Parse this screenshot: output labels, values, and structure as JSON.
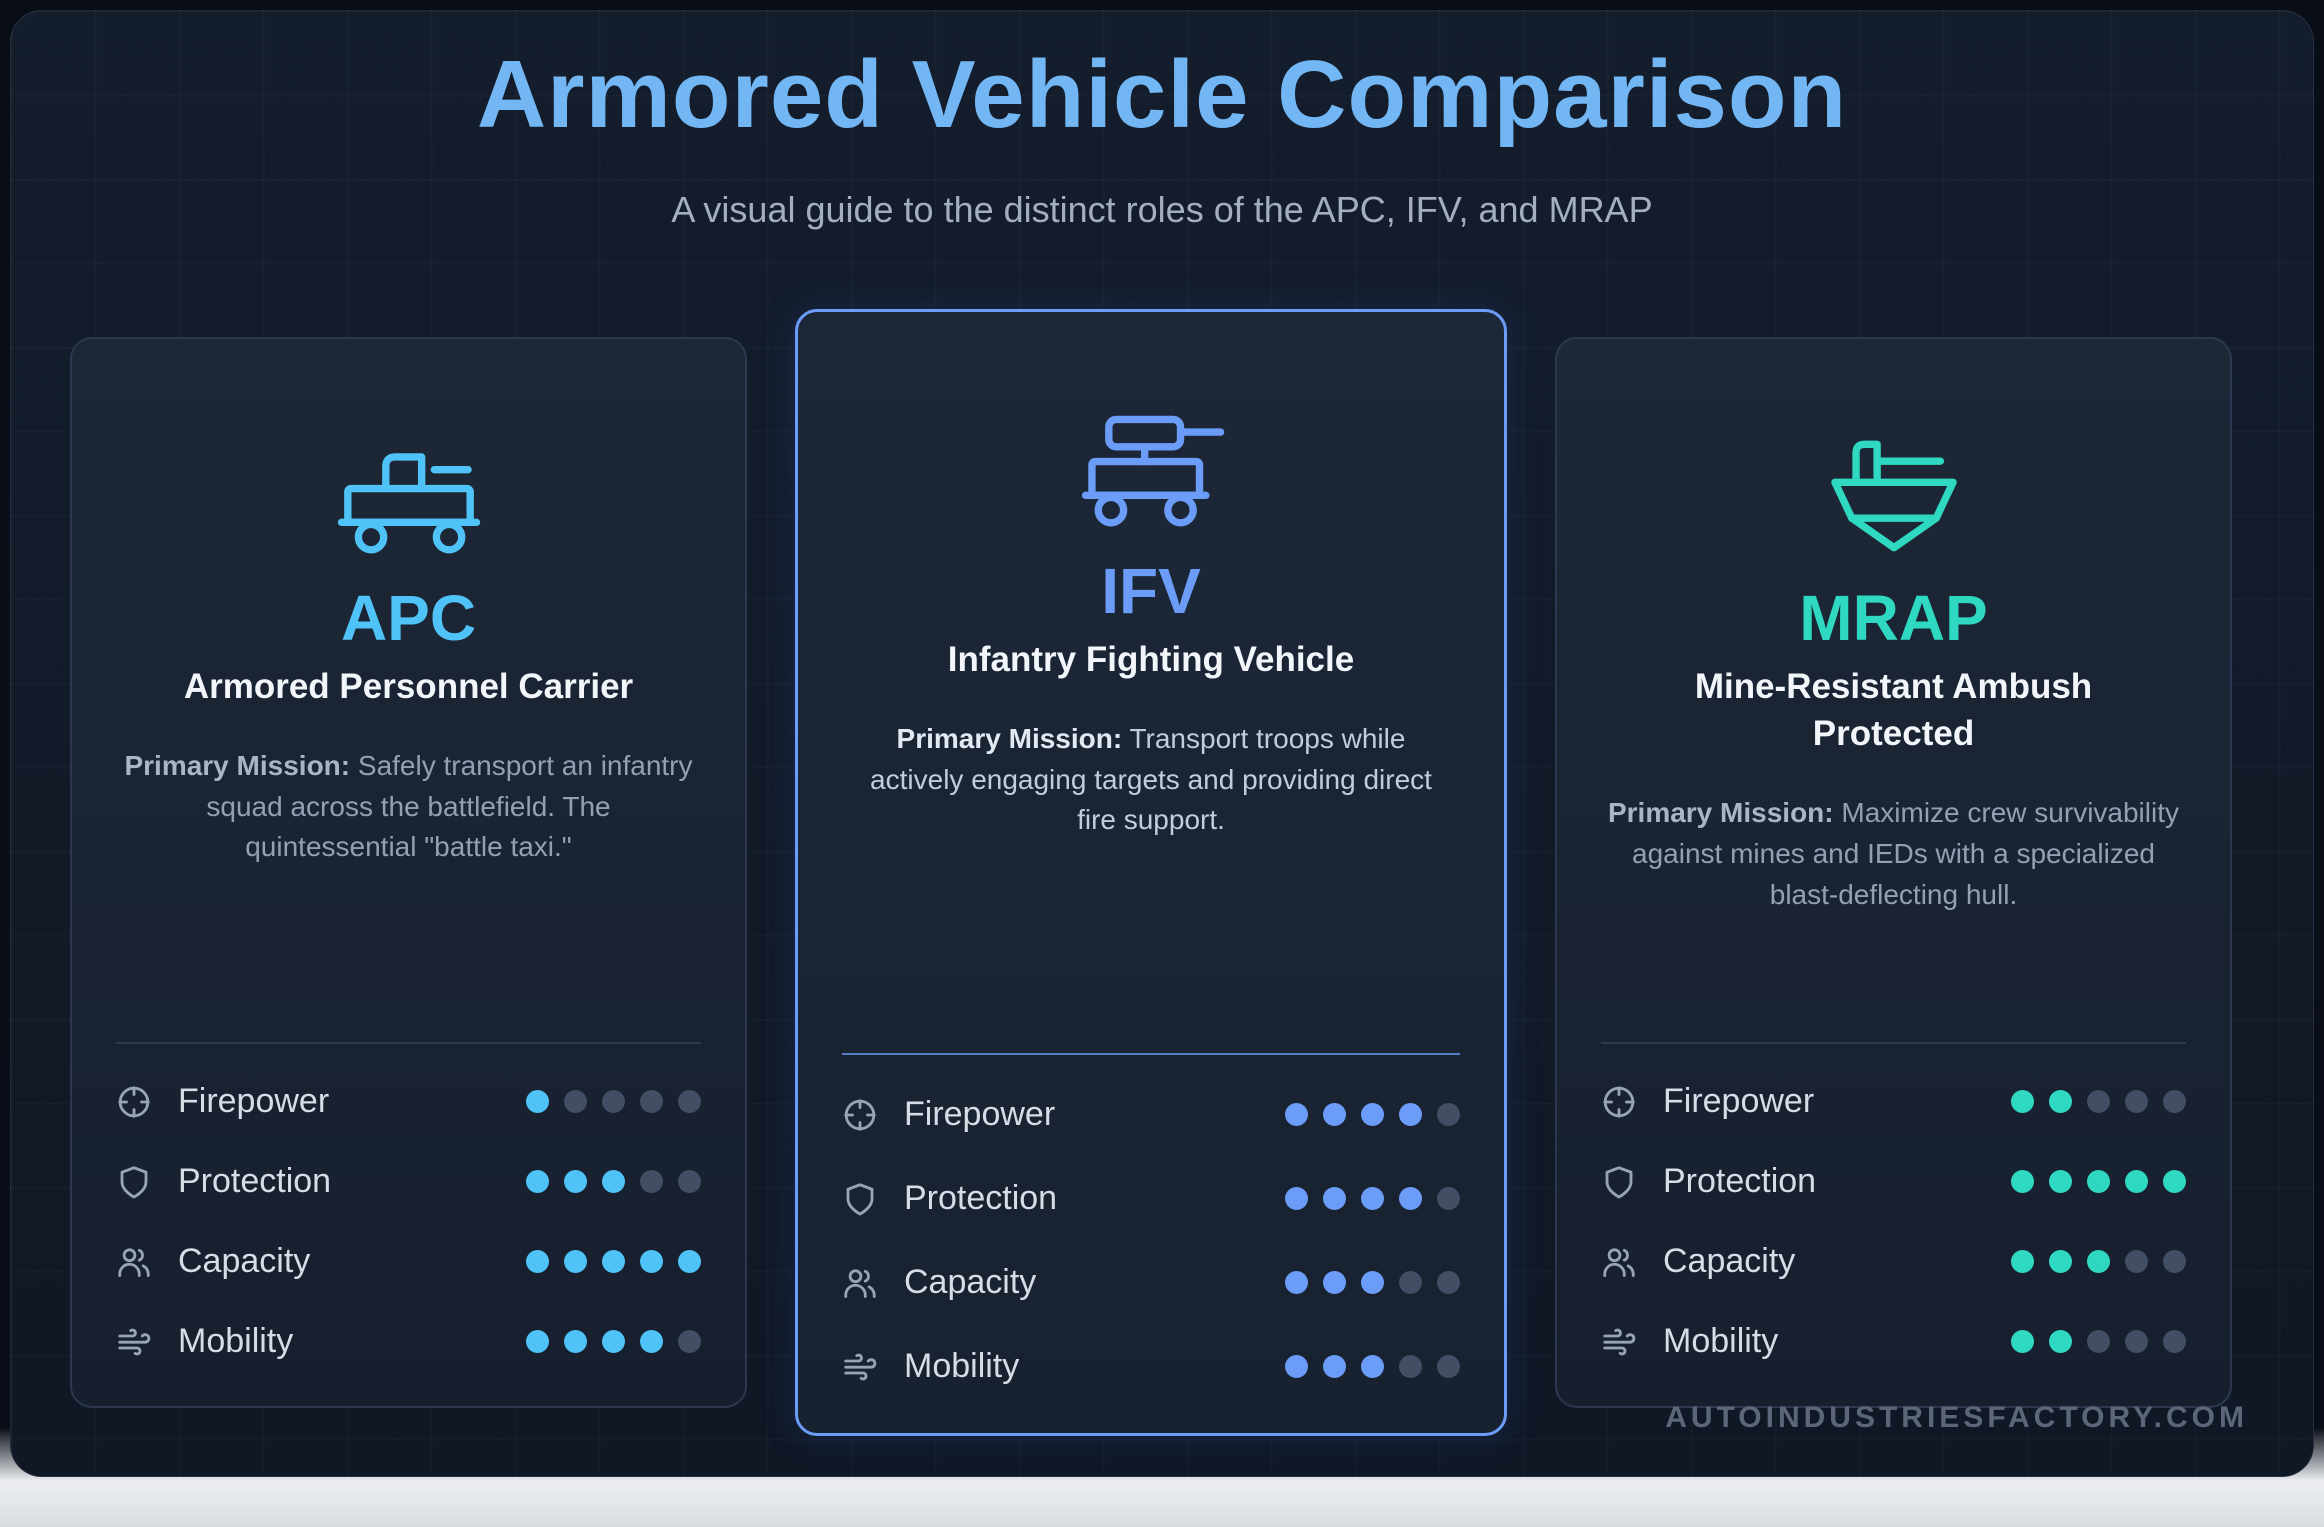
{
  "page": {
    "title": "Armored Vehicle Comparison",
    "subtitle": "A visual guide to the distinct roles of the APC, IFV, and MRAP",
    "watermark": "AUTOINDUSTRIESFACTORY.COM",
    "title_color": "#72b6f3",
    "panel_bg": "#131c2b"
  },
  "rating_scale": {
    "max": 5,
    "empty_dot_color": "#424e63"
  },
  "cards": [
    {
      "id": "apc",
      "abbr": "APC",
      "name": "Armored Personnel Carrier",
      "mission_label": "Primary Mission:",
      "mission": "Safely transport an infantry squad across the battlefield. The quintessential \"battle taxi.\"",
      "accent": "#4fc3f7",
      "featured": false,
      "vehicle_icon": "apc-vehicle-icon",
      "stats": [
        {
          "label": "Firepower",
          "icon": "crosshair-icon",
          "value": 1
        },
        {
          "label": "Protection",
          "icon": "shield-icon",
          "value": 3
        },
        {
          "label": "Capacity",
          "icon": "users-icon",
          "value": 5
        },
        {
          "label": "Mobility",
          "icon": "wind-icon",
          "value": 4
        }
      ]
    },
    {
      "id": "ifv",
      "abbr": "IFV",
      "name": "Infantry Fighting Vehicle",
      "mission_label": "Primary Mission:",
      "mission": "Transport troops while actively engaging targets and providing direct fire support.",
      "accent": "#6b9cf8",
      "featured": true,
      "vehicle_icon": "ifv-vehicle-icon",
      "stats": [
        {
          "label": "Firepower",
          "icon": "crosshair-icon",
          "value": 4
        },
        {
          "label": "Protection",
          "icon": "shield-icon",
          "value": 4
        },
        {
          "label": "Capacity",
          "icon": "users-icon",
          "value": 3
        },
        {
          "label": "Mobility",
          "icon": "wind-icon",
          "value": 3
        }
      ]
    },
    {
      "id": "mrap",
      "abbr": "MRAP",
      "name": "Mine-Resistant Ambush Protected",
      "mission_label": "Primary Mission:",
      "mission": "Maximize crew survivability against mines and IEDs with a specialized blast-deflecting hull.",
      "accent": "#2fd9c1",
      "featured": false,
      "vehicle_icon": "mrap-vehicle-icon",
      "stats": [
        {
          "label": "Firepower",
          "icon": "crosshair-icon",
          "value": 2
        },
        {
          "label": "Protection",
          "icon": "shield-icon",
          "value": 5
        },
        {
          "label": "Capacity",
          "icon": "users-icon",
          "value": 3
        },
        {
          "label": "Mobility",
          "icon": "wind-icon",
          "value": 2
        }
      ]
    }
  ]
}
